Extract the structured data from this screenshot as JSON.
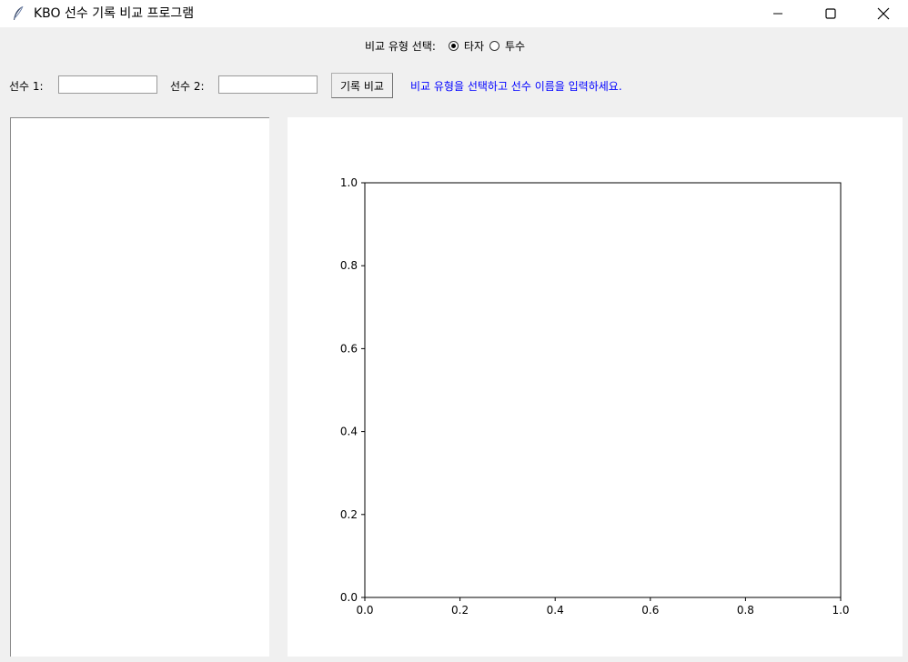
{
  "window": {
    "title": "KBO 선수 기록 비교 프로그램",
    "icon": "feather-icon",
    "controls": [
      "minimize-icon",
      "maximize-icon",
      "close-icon"
    ]
  },
  "comparison_type": {
    "label": "비교 유형 선택:",
    "options": [
      {
        "label": "타자",
        "selected": true
      },
      {
        "label": "투수",
        "selected": false
      }
    ]
  },
  "inputs": {
    "player1_label": "선수 1:",
    "player1_value": "",
    "player2_label": "선수 2:",
    "player2_value": "",
    "compare_button": "기록 비교",
    "status_message": "비교 유형을 선택하고 선수 이름을 입력하세요.",
    "status_color": "#0000ff"
  },
  "chart_data": {
    "type": "line",
    "title": "",
    "xlabel": "",
    "ylabel": "",
    "xlim": [
      0.0,
      1.0
    ],
    "ylim": [
      0.0,
      1.0
    ],
    "x_ticks": [
      "0.0",
      "0.2",
      "0.4",
      "0.6",
      "0.8",
      "1.0"
    ],
    "y_ticks": [
      "0.0",
      "0.2",
      "0.4",
      "0.6",
      "0.8",
      "1.0"
    ],
    "series": [],
    "grid": false
  }
}
